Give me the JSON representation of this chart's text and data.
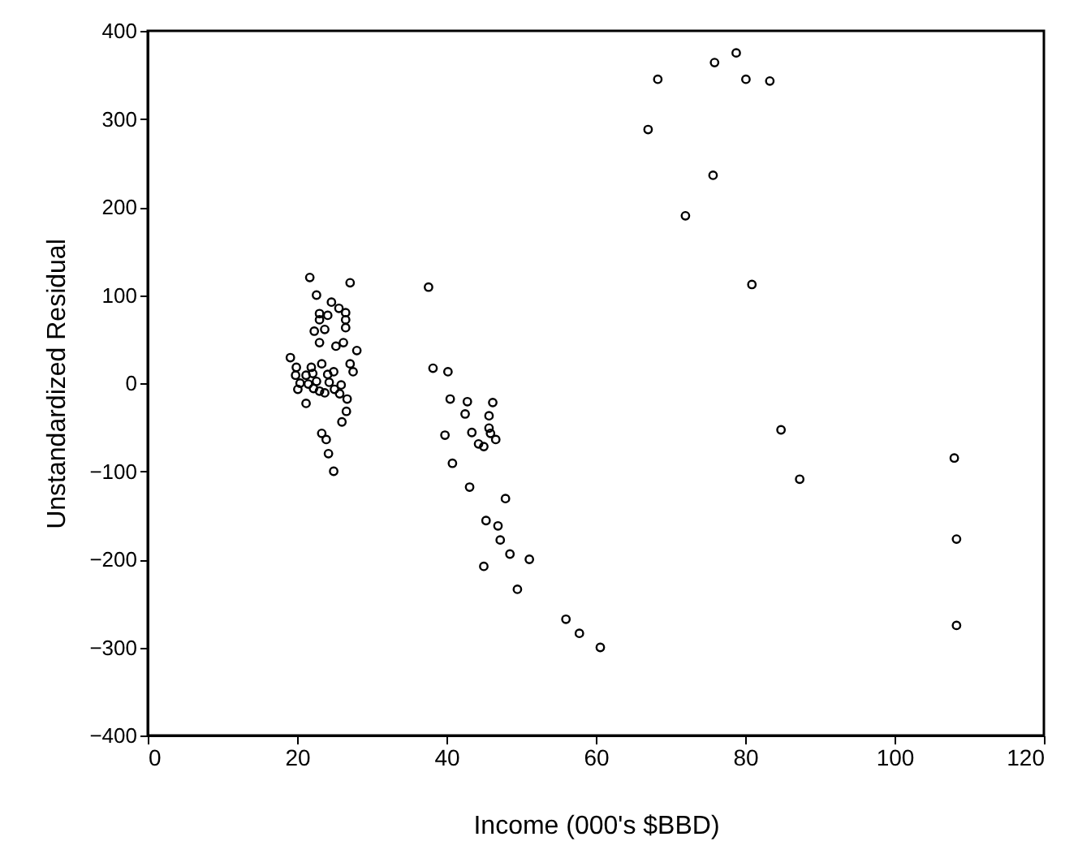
{
  "chart_data": {
    "type": "scatter",
    "xlabel": "Income (000's $BBD)",
    "ylabel": "Unstandardized Residual",
    "xlim": [
      0,
      120
    ],
    "xticks": [
      0,
      20,
      40,
      60,
      80,
      100,
      120
    ],
    "ylim": [
      -400,
      400
    ],
    "yticks": [
      -400,
      -300,
      -200,
      -100,
      0,
      100,
      200,
      300,
      400
    ],
    "grid": false,
    "marker": "circle",
    "series": [
      {
        "color": "#000000",
        "x": [
          21.7,
          27.1,
          22.6,
          24.6,
          25.6,
          26.5,
          23.0,
          24.1,
          26.5,
          23.0,
          26.5,
          23.7,
          22.3,
          23.0,
          25.2,
          26.2,
          28.0,
          37.6,
          38.2,
          19.1,
          19.9,
          21.9,
          23.3,
          27.1,
          27.5,
          19.8,
          21.2,
          22.1,
          24.1,
          24.9,
          20.4,
          21.5,
          22.6,
          24.3,
          20.1,
          22.2,
          23.0,
          25.0,
          25.9,
          23.7,
          25.7,
          26.7,
          21.2,
          26.6,
          26.0,
          23.3,
          23.9,
          24.2,
          24.9,
          78.8,
          75.9,
          68.3,
          80.1,
          83.3,
          67.0,
          75.7,
          72.0,
          80.9,
          40.2,
          40.5,
          42.8,
          46.2,
          42.5,
          45.7,
          39.8,
          43.4,
          45.7,
          45.9,
          46.6,
          44.3,
          45.0,
          40.8,
          43.1,
          47.9,
          45.3,
          46.9,
          47.2,
          48.5,
          51.1,
          45.0,
          49.5,
          84.8,
          87.3,
          108.0,
          108.3,
          56.0,
          57.8,
          60.6,
          108.3
        ],
        "values": [
          120,
          114,
          100,
          92,
          85,
          80,
          79,
          77,
          72,
          72,
          63,
          61,
          59,
          46,
          42,
          46,
          37,
          109,
          17,
          29,
          18,
          18,
          22,
          22,
          13,
          9,
          9,
          11,
          10,
          13,
          0,
          -1,
          2,
          1,
          -7,
          -6,
          -9,
          -7,
          -2,
          -11,
          -12,
          -18,
          -23,
          -32,
          -44,
          -57,
          -64,
          -80,
          -100,
          375,
          364,
          345,
          345,
          343,
          288,
          236,
          190,
          112,
          13,
          -18,
          -21,
          -22,
          -35,
          -37,
          -59,
          -56,
          -51,
          -57,
          -64,
          -69,
          -72,
          -91,
          -118,
          -131,
          -156,
          -162,
          -178,
          -194,
          -200,
          -208,
          -234,
          -53,
          -109,
          -85,
          -177,
          -268,
          -284,
          -300,
          -275
        ]
      }
    ]
  }
}
